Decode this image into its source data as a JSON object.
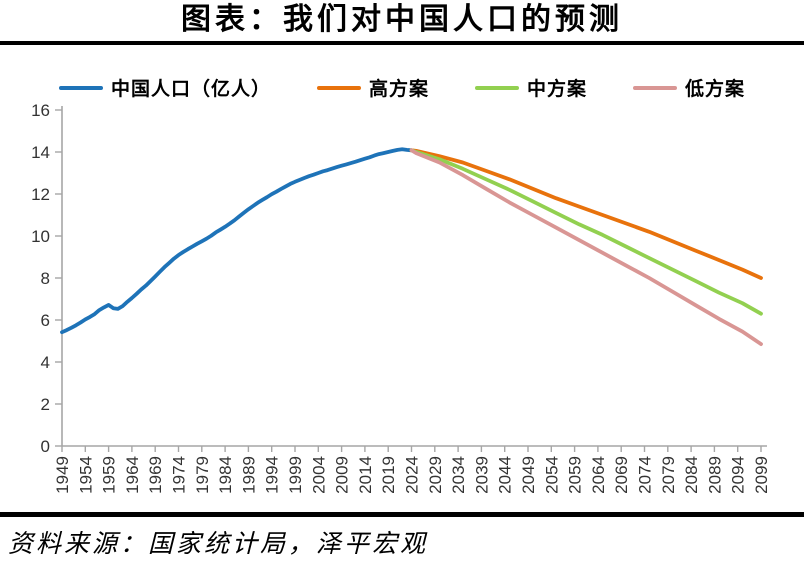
{
  "title": "图表：我们对中国人口的预测",
  "source": "资料来源：国家统计局，泽平宏观",
  "colors": {
    "axis": "#a6a6a6",
    "tick_label": "#333333",
    "divider": "#000000",
    "background": "#ffffff"
  },
  "chart_data": {
    "type": "line",
    "title": "图表：我们对中国人口的预测",
    "xlabel": "",
    "ylabel": "",
    "unit": "亿人",
    "grid": false,
    "legend_position": "top",
    "xlim": [
      1949,
      2099
    ],
    "ylim": [
      0,
      16
    ],
    "y_ticks": [
      0,
      2,
      4,
      6,
      8,
      10,
      12,
      14,
      16
    ],
    "x_ticks": [
      1949,
      1954,
      1959,
      1964,
      1969,
      1974,
      1979,
      1984,
      1989,
      1994,
      1999,
      2004,
      2009,
      2014,
      2019,
      2024,
      2029,
      2034,
      2039,
      2044,
      2049,
      2054,
      2059,
      2064,
      2069,
      2074,
      2079,
      2084,
      2089,
      2094,
      2099
    ],
    "series": [
      {
        "key": "china-population",
        "name": "中国人口（亿人）",
        "color": "#1e73b8",
        "x_start": 1949,
        "x_step": 1,
        "values": [
          5.42,
          5.52,
          5.63,
          5.75,
          5.88,
          6.03,
          6.15,
          6.28,
          6.47,
          6.6,
          6.72,
          6.56,
          6.53,
          6.66,
          6.86,
          7.05,
          7.25,
          7.45,
          7.64,
          7.85,
          8.07,
          8.3,
          8.52,
          8.72,
          8.92,
          9.09,
          9.24,
          9.37,
          9.5,
          9.63,
          9.75,
          9.87,
          10.01,
          10.17,
          10.3,
          10.44,
          10.59,
          10.75,
          10.93,
          11.1,
          11.27,
          11.43,
          11.58,
          11.72,
          11.85,
          11.99,
          12.11,
          12.24,
          12.36,
          12.48,
          12.58,
          12.67,
          12.76,
          12.85,
          12.92,
          13.0,
          13.08,
          13.14,
          13.21,
          13.28,
          13.35,
          13.41,
          13.47,
          13.54,
          13.61,
          13.68,
          13.75,
          13.83,
          13.9,
          13.95,
          14.0,
          14.05,
          14.1,
          14.13,
          14.1,
          14.08
        ]
      },
      {
        "key": "high-scenario",
        "name": "高方案",
        "color": "#e8720c",
        "x": [
          2024,
          2025,
          2030,
          2035,
          2040,
          2045,
          2050,
          2055,
          2060,
          2065,
          2070,
          2075,
          2080,
          2085,
          2090,
          2095,
          2099
        ],
        "values": [
          14.08,
          14.05,
          13.8,
          13.5,
          13.1,
          12.7,
          12.25,
          11.8,
          11.4,
          11.0,
          10.6,
          10.2,
          9.75,
          9.3,
          8.85,
          8.4,
          8.0
        ]
      },
      {
        "key": "mid-scenario",
        "name": "中方案",
        "color": "#92d050",
        "x": [
          2024,
          2025,
          2030,
          2035,
          2040,
          2045,
          2050,
          2055,
          2060,
          2065,
          2070,
          2075,
          2080,
          2085,
          2090,
          2095,
          2099
        ],
        "values": [
          14.08,
          14.0,
          13.65,
          13.2,
          12.7,
          12.2,
          11.65,
          11.1,
          10.55,
          10.05,
          9.5,
          8.95,
          8.4,
          7.85,
          7.3,
          6.8,
          6.3
        ]
      },
      {
        "key": "low-scenario",
        "name": "低方案",
        "color": "#d99694",
        "x": [
          2024,
          2025,
          2030,
          2035,
          2040,
          2045,
          2050,
          2055,
          2060,
          2065,
          2070,
          2075,
          2080,
          2085,
          2090,
          2095,
          2099
        ],
        "values": [
          14.08,
          13.95,
          13.5,
          12.9,
          12.25,
          11.6,
          11.0,
          10.4,
          9.8,
          9.2,
          8.6,
          8.0,
          7.35,
          6.7,
          6.05,
          5.45,
          4.85
        ]
      }
    ]
  }
}
